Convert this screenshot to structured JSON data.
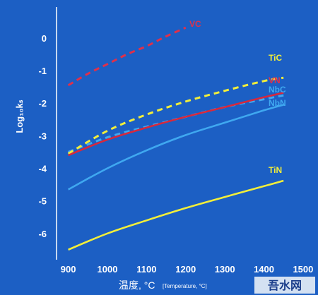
{
  "chart_data": {
    "type": "line",
    "title": "",
    "xlabel": "温度, °C",
    "xlabel_sub": "[Temperature, °C]",
    "ylabel": "Log₁₀kₛ",
    "xlim": [
      870,
      1520
    ],
    "ylim": [
      -6.85,
      0.95
    ],
    "x_ticks": [
      900,
      1000,
      1100,
      1200,
      1300,
      1400,
      1500
    ],
    "y_ticks": [
      0,
      -1,
      -2,
      -3,
      -4,
      -5,
      -6
    ],
    "grid": false,
    "legend": "inline labels at line ends",
    "series": [
      {
        "name": "VC",
        "color": "#e0304a",
        "dash": true,
        "x": [
          900,
          950,
          1000,
          1050,
          1100,
          1150,
          1200
        ],
        "y": [
          -1.45,
          -1.1,
          -0.8,
          -0.5,
          -0.25,
          0.05,
          0.32
        ]
      },
      {
        "name": "TiC",
        "color": "#f2ee3a",
        "dash": true,
        "x": [
          900,
          1000,
          1100,
          1200,
          1300,
          1400,
          1450
        ],
        "y": [
          -3.55,
          -2.85,
          -2.35,
          -1.95,
          -1.62,
          -1.32,
          -1.22
        ]
      },
      {
        "name": "VN",
        "color": "#d8283c",
        "dash": false,
        "x": [
          900,
          1000,
          1100,
          1200,
          1300,
          1400,
          1450
        ],
        "y": [
          -3.6,
          -3.12,
          -2.75,
          -2.42,
          -2.12,
          -1.82,
          -1.68
        ]
      },
      {
        "name": "NbC",
        "color": "#3fa8f0",
        "dash": true,
        "x": [
          900,
          1000,
          1100,
          1200,
          1300,
          1400,
          1450
        ],
        "y": [
          -3.5,
          -3.05,
          -2.72,
          -2.42,
          -2.12,
          -1.88,
          -1.76
        ]
      },
      {
        "name": "NbN",
        "color": "#3fa8f0",
        "dash": false,
        "x": [
          900,
          1000,
          1100,
          1200,
          1300,
          1400,
          1450
        ],
        "y": [
          -4.65,
          -4.0,
          -3.45,
          -2.98,
          -2.6,
          -2.22,
          -2.05
        ]
      },
      {
        "name": "TiN",
        "color": "#f2ee3a",
        "dash": false,
        "x": [
          900,
          1000,
          1100,
          1200,
          1300,
          1400,
          1450
        ],
        "y": [
          -6.5,
          -6.0,
          -5.6,
          -5.22,
          -4.88,
          -4.55,
          -4.38
        ]
      }
    ]
  },
  "watermark": "吾水网"
}
